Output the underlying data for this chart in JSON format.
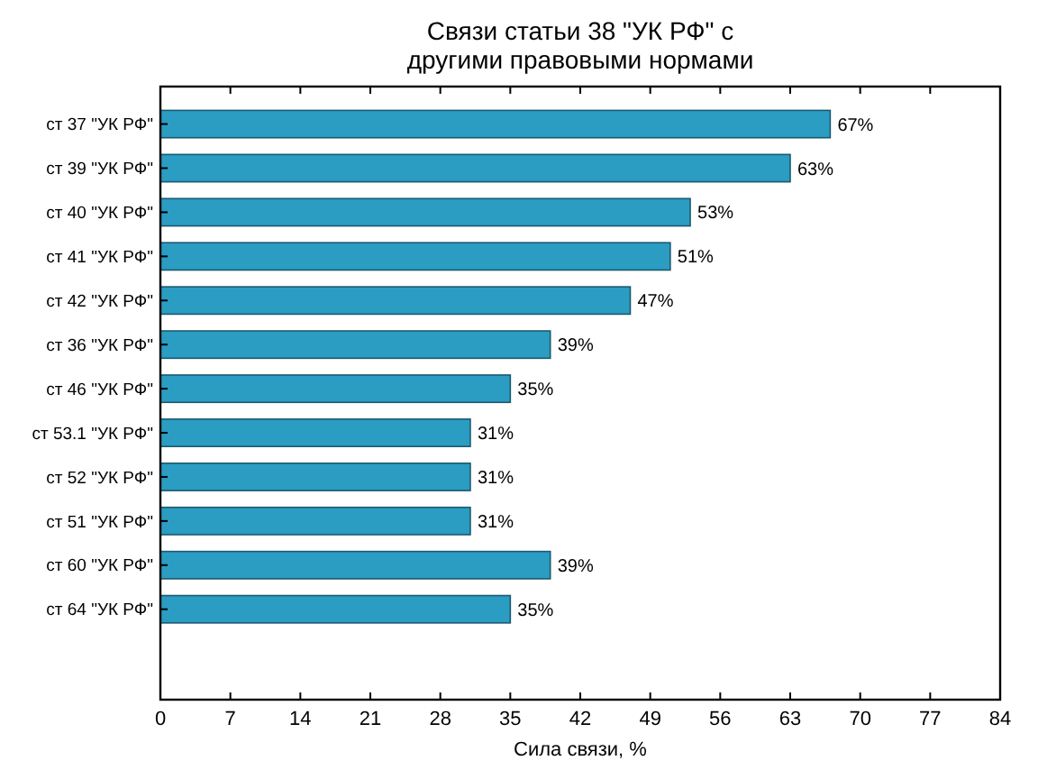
{
  "chart_data": {
    "type": "bar",
    "orientation": "horizontal",
    "title": "Связи статьи 38 \"УК РФ\" с\nдругими правовыми нормами",
    "xlabel": "Сила связи, %",
    "categories": [
      "ст 37 \"УК РФ\"",
      "ст 39 \"УК РФ\"",
      "ст 40 \"УК РФ\"",
      "ст 41 \"УК РФ\"",
      "ст 42 \"УК РФ\"",
      "ст 36 \"УК РФ\"",
      "ст 46 \"УК РФ\"",
      "ст 53.1 \"УК РФ\"",
      "ст 52 \"УК РФ\"",
      "ст 51 \"УК РФ\"",
      "ст 60 \"УК РФ\"",
      "ст 64 \"УК РФ\""
    ],
    "values": [
      67,
      63,
      53,
      51,
      47,
      39,
      35,
      31,
      31,
      31,
      39,
      35
    ],
    "value_labels": [
      "67%",
      "63%",
      "53%",
      "51%",
      "47%",
      "39%",
      "35%",
      "31%",
      "31%",
      "31%",
      "39%",
      "35%"
    ],
    "color": "#2b9cc2",
    "xlim": [
      0,
      84
    ],
    "xticks": [
      0,
      7,
      14,
      21,
      28,
      35,
      42,
      49,
      56,
      63,
      70,
      77,
      84
    ],
    "grid": false
  }
}
